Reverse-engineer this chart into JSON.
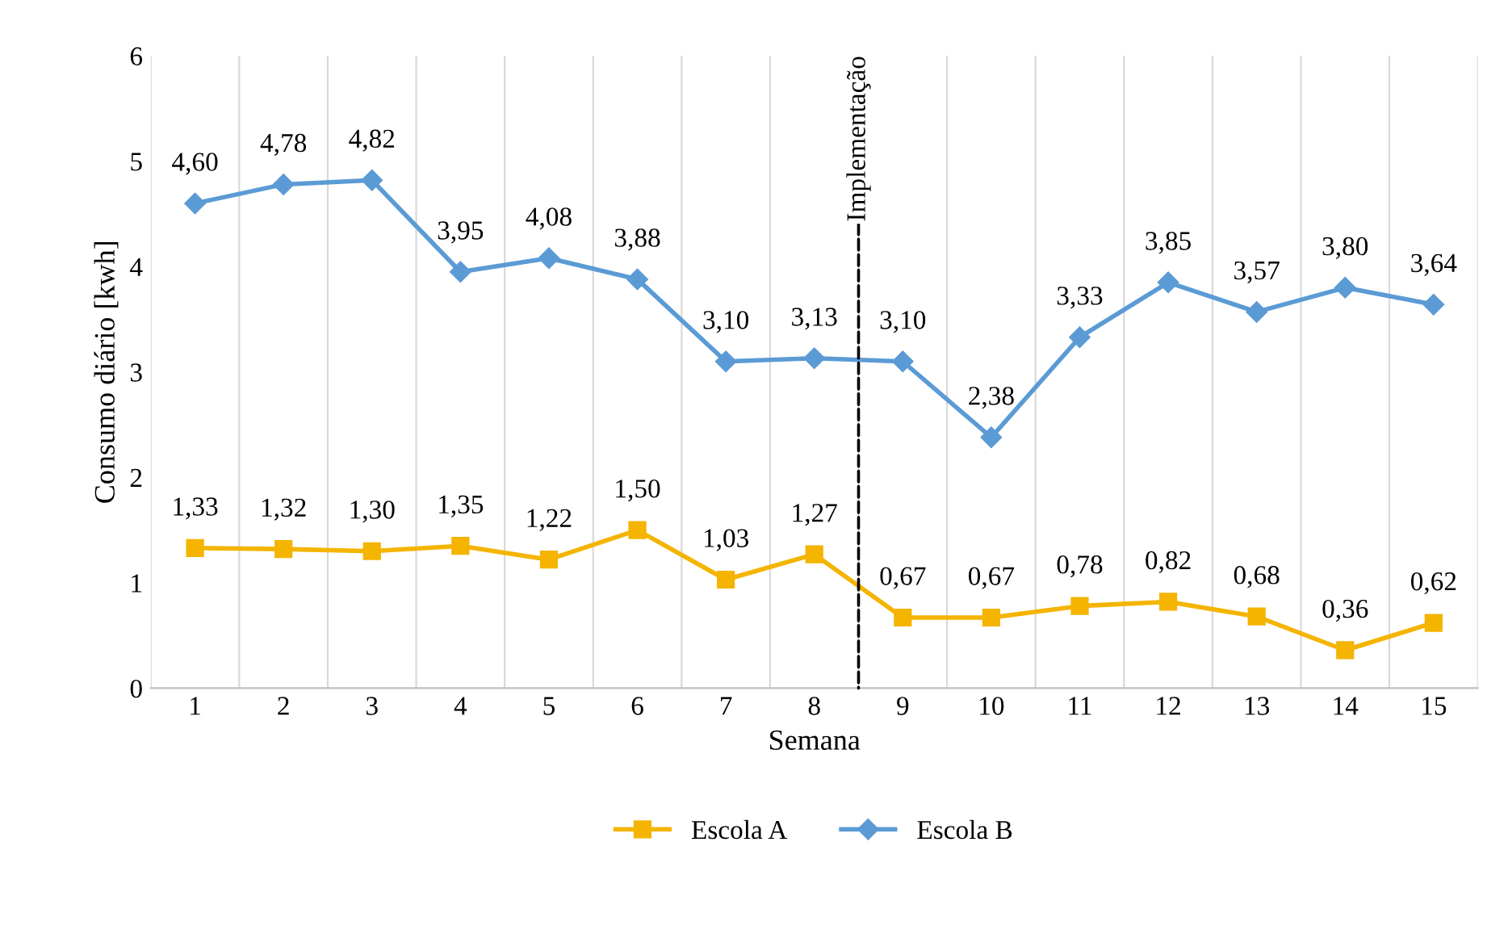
{
  "chart_data": {
    "type": "line",
    "xlabel": "Semana",
    "ylabel": "Consumo diário [kwh]",
    "categories": [
      "1",
      "2",
      "3",
      "4",
      "5",
      "6",
      "7",
      "8",
      "9",
      "10",
      "11",
      "12",
      "13",
      "14",
      "15"
    ],
    "series": [
      {
        "name": "Escola A",
        "color": "#f4b400",
        "marker": "square",
        "values": [
          1.33,
          1.32,
          1.3,
          1.35,
          1.22,
          1.5,
          1.03,
          1.27,
          0.67,
          0.67,
          0.78,
          0.82,
          0.68,
          0.36,
          0.62
        ],
        "value_labels": [
          "1,33",
          "1,32",
          "1,30",
          "1,35",
          "1,22",
          "1,50",
          "1,03",
          "1,27",
          "0,67",
          "0,67",
          "0,78",
          "0,82",
          "0,68",
          "0,36",
          "0,62"
        ]
      },
      {
        "name": "Escola B",
        "color": "#5b9bd5",
        "marker": "diamond",
        "values": [
          4.6,
          4.78,
          4.82,
          3.95,
          4.08,
          3.88,
          3.1,
          3.13,
          3.1,
          2.38,
          3.33,
          3.85,
          3.57,
          3.8,
          3.64
        ],
        "value_labels": [
          "4,60",
          "4,78",
          "4,82",
          "3,95",
          "4,08",
          "3,88",
          "3,10",
          "3,13",
          "3,10",
          "2,38",
          "3,33",
          "3,85",
          "3,57",
          "3,80",
          "3,64"
        ]
      }
    ],
    "ylim": [
      0,
      6
    ],
    "yticks": [
      0,
      1,
      2,
      3,
      4,
      5,
      6
    ],
    "grid": "x",
    "legend": "bottom",
    "line_style": "solid",
    "annotations": [
      "Implementação"
    ]
  }
}
